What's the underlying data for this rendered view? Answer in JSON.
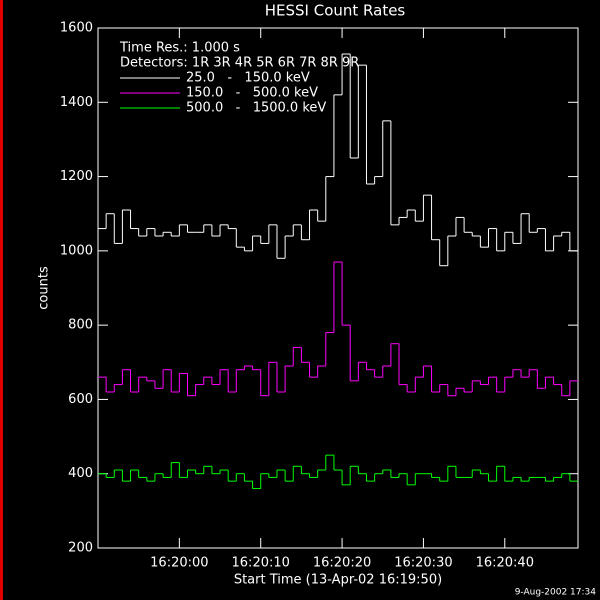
{
  "chart_data": {
    "type": "step",
    "title": "HESSI Count Rates",
    "annotations": [
      "Time Res.: 1.000 s",
      "Detectors: 1R 3R 4R 5R 6R 7R 8R 9R"
    ],
    "footer": "9-Aug-2002 17:34",
    "x_label": "Start Time (13-Apr-02 16:19:50)",
    "y_label": "counts",
    "x": [
      "16:19:50",
      "16:19:51",
      "16:19:52",
      "16:19:53",
      "16:19:54",
      "16:19:55",
      "16:19:56",
      "16:19:57",
      "16:19:58",
      "16:19:59",
      "16:20:00",
      "16:20:01",
      "16:20:02",
      "16:20:03",
      "16:20:04",
      "16:20:05",
      "16:20:06",
      "16:20:07",
      "16:20:08",
      "16:20:09",
      "16:20:10",
      "16:20:11",
      "16:20:12",
      "16:20:13",
      "16:20:14",
      "16:20:15",
      "16:20:16",
      "16:20:17",
      "16:20:18",
      "16:20:19",
      "16:20:20",
      "16:20:21",
      "16:20:22",
      "16:20:23",
      "16:20:24",
      "16:20:25",
      "16:20:26",
      "16:20:27",
      "16:20:28",
      "16:20:29",
      "16:20:30",
      "16:20:31",
      "16:20:32",
      "16:20:33",
      "16:20:34",
      "16:20:35",
      "16:20:36",
      "16:20:37",
      "16:20:38",
      "16:20:39",
      "16:20:40",
      "16:20:41",
      "16:20:42",
      "16:20:43",
      "16:20:44",
      "16:20:45",
      "16:20:46",
      "16:20:47",
      "16:20:48"
    ],
    "xlim": [
      "16:19:50",
      "16:20:49"
    ],
    "xticks": [
      "16:20:00",
      "16:20:10",
      "16:20:20",
      "16:20:30",
      "16:20:40"
    ],
    "ylim": [
      200,
      1600
    ],
    "yticks": [
      200,
      400,
      600,
      800,
      1000,
      1200,
      1400,
      1600
    ],
    "series": [
      {
        "name": "25.0   -   150.0 keV",
        "color": "#ffffff",
        "values": [
          1060,
          1100,
          1020,
          1110,
          1060,
          1040,
          1060,
          1040,
          1050,
          1040,
          1070,
          1050,
          1050,
          1070,
          1040,
          1070,
          1060,
          1010,
          1000,
          1040,
          1020,
          1070,
          980,
          1040,
          1070,
          1030,
          1110,
          1080,
          1200,
          1420,
          1530,
          1250,
          1500,
          1180,
          1200,
          1350,
          1070,
          1090,
          1110,
          1080,
          1150,
          1030,
          960,
          1040,
          1090,
          1050,
          1040,
          1010,
          1060,
          1000,
          1050,
          1020,
          1100,
          1050,
          1060,
          1000,
          1040,
          1050,
          1000
        ]
      },
      {
        "name": "150.0   -   500.0 keV",
        "color": "#ff00ff",
        "values": [
          660,
          620,
          640,
          680,
          620,
          660,
          650,
          630,
          680,
          620,
          670,
          610,
          640,
          660,
          640,
          680,
          620,
          680,
          690,
          680,
          610,
          700,
          620,
          690,
          740,
          700,
          660,
          690,
          780,
          970,
          800,
          650,
          700,
          680,
          660,
          690,
          750,
          640,
          620,
          660,
          690,
          620,
          640,
          610,
          630,
          620,
          650,
          640,
          660,
          620,
          660,
          680,
          660,
          680,
          630,
          660,
          640,
          610,
          650
        ]
      },
      {
        "name": "500.0   -   1500.0 keV",
        "color": "#00ff00",
        "values": [
          400,
          390,
          410,
          380,
          410,
          390,
          380,
          400,
          390,
          430,
          390,
          410,
          400,
          420,
          400,
          410,
          380,
          400,
          380,
          360,
          400,
          390,
          410,
          380,
          420,
          400,
          390,
          410,
          450,
          410,
          370,
          420,
          400,
          380,
          400,
          410,
          390,
          400,
          370,
          400,
          400,
          390,
          380,
          420,
          390,
          390,
          410,
          400,
          380,
          420,
          380,
          390,
          380,
          390,
          390,
          380,
          390,
          400,
          380
        ]
      }
    ]
  }
}
